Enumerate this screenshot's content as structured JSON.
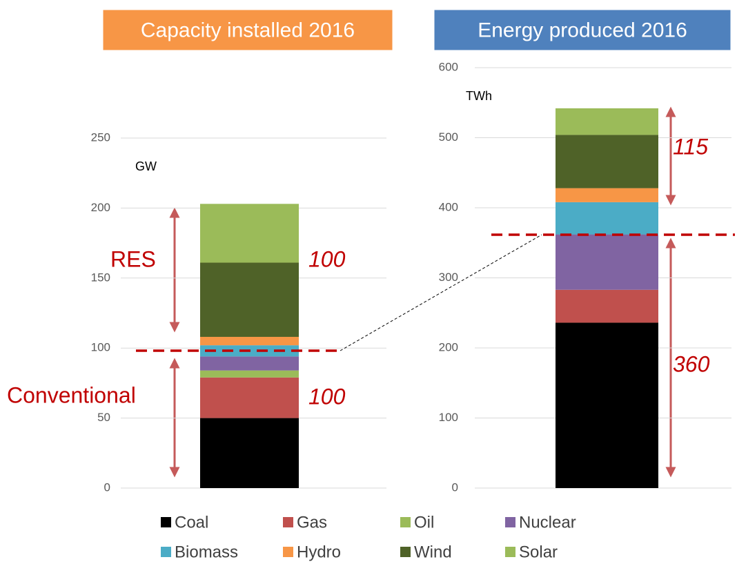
{
  "chart_data": [
    {
      "type": "stacked_bar",
      "title": "Capacity installed 2016",
      "y_label": "GW",
      "ylim": [
        0,
        250
      ],
      "yticks": [
        0,
        50,
        100,
        150,
        200,
        250
      ],
      "grid": true,
      "title_color": "#f79646",
      "series": [
        {
          "name": "Coal",
          "color": "#000000",
          "values": [
            50
          ]
        },
        {
          "name": "Gas",
          "color": "#c0504d",
          "values": [
            29
          ]
        },
        {
          "name": "Oil",
          "color": "#9bbb59",
          "values": [
            5
          ]
        },
        {
          "name": "Nuclear",
          "color": "#8064a2",
          "values": [
            10
          ]
        },
        {
          "name": "Biomass",
          "color": "#4bacc6",
          "values": [
            8
          ]
        },
        {
          "name": "Hydro",
          "color": "#f79646",
          "values": [
            6
          ]
        },
        {
          "name": "Wind",
          "color": "#4f6228",
          "values": [
            53
          ]
        },
        {
          "name": "Solar",
          "color": "#9bbb59",
          "values": [
            42
          ]
        }
      ],
      "annotations": [
        "RES",
        "Conventional",
        "100",
        "100"
      ]
    },
    {
      "type": "stacked_bar",
      "title": "Energy produced 2016",
      "y_label": "TWh",
      "ylim": [
        0,
        600
      ],
      "yticks": [
        0,
        100,
        200,
        300,
        400,
        500,
        600
      ],
      "grid": true,
      "title_color": "#4f81bd",
      "series": [
        {
          "name": "Coal",
          "color": "#000000",
          "values": [
            236
          ]
        },
        {
          "name": "Gas",
          "color": "#c0504d",
          "values": [
            47
          ]
        },
        {
          "name": "Oil",
          "color": "#9bbb59",
          "values": [
            0
          ]
        },
        {
          "name": "Nuclear",
          "color": "#8064a2",
          "values": [
            79
          ]
        },
        {
          "name": "Biomass",
          "color": "#4bacc6",
          "values": [
            46
          ]
        },
        {
          "name": "Hydro",
          "color": "#f79646",
          "values": [
            20
          ]
        },
        {
          "name": "Wind",
          "color": "#4f6228",
          "values": [
            76
          ]
        },
        {
          "name": "Solar",
          "color": "#9bbb59",
          "values": [
            38
          ]
        }
      ],
      "annotations": [
        "115",
        "360"
      ]
    }
  ]
}
